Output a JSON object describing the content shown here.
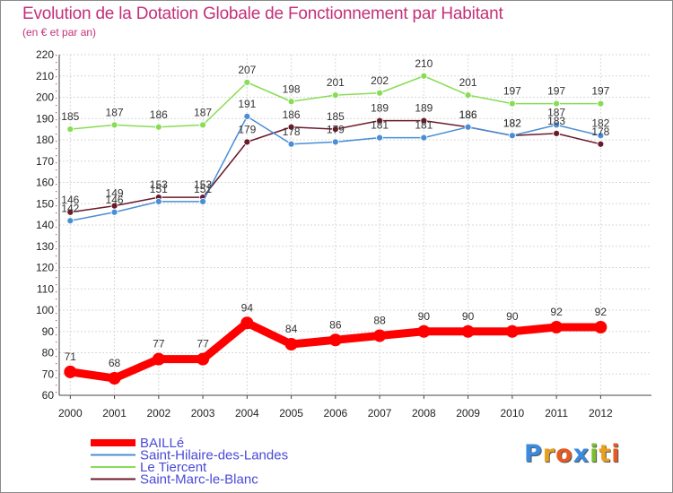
{
  "chart_data": {
    "type": "line",
    "title": "Evolution de la Dotation Globale de Fonctionnement par Habitant",
    "subtitle": "(en € et par an)",
    "xlabel": "",
    "ylabel": "",
    "categories": [
      "2000",
      "2001",
      "2002",
      "2003",
      "2004",
      "2005",
      "2006",
      "2007",
      "2008",
      "2009",
      "2010",
      "2011",
      "2012"
    ],
    "ylim": [
      60,
      220
    ],
    "yticks": [
      60,
      70,
      80,
      90,
      100,
      110,
      120,
      130,
      140,
      150,
      160,
      170,
      180,
      190,
      200,
      210,
      220
    ],
    "grid": true,
    "legend": "bottom-left",
    "series": [
      {
        "name": "BAILLé",
        "color": "#ff0000",
        "values": [
          71,
          68,
          77,
          77,
          94,
          84,
          86,
          88,
          90,
          90,
          90,
          92,
          92
        ]
      },
      {
        "name": "Saint-Hilaire-des-Landes",
        "color": "#4a8ed6",
        "values": [
          142,
          146,
          151,
          151,
          191,
          178,
          179,
          181,
          181,
          186,
          182,
          187,
          182
        ]
      },
      {
        "name": "Le Tiercent",
        "color": "#88dd55",
        "values": [
          185,
          187,
          186,
          187,
          207,
          198,
          201,
          202,
          210,
          201,
          197,
          197,
          197
        ]
      },
      {
        "name": "Saint-Marc-le-Blanc",
        "color": "#6b1a2a",
        "values": [
          146,
          149,
          153,
          153,
          179,
          186,
          185,
          189,
          189,
          186,
          182,
          183,
          178
        ]
      }
    ]
  },
  "logo": {
    "text": "Proxiti",
    "letters": [
      {
        "ch": "P",
        "color": "#3a8be0"
      },
      {
        "ch": "r",
        "color": "#e8a020"
      },
      {
        "ch": "o",
        "color": "#e85a20"
      },
      {
        "ch": "x",
        "color": "#3a8be0"
      },
      {
        "ch": "i",
        "color": "#7ac030"
      },
      {
        "ch": "t",
        "color": "#e8a020"
      },
      {
        "ch": "i",
        "color": "#e85a20"
      }
    ]
  }
}
